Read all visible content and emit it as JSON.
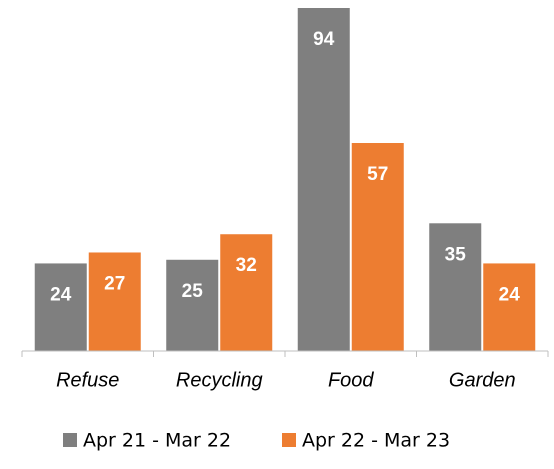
{
  "chart_data": {
    "type": "bar",
    "categories": [
      "Refuse",
      "Recycling",
      "Food",
      "Garden"
    ],
    "series": [
      {
        "name": "Apr 21 - Mar 22",
        "color": "#7f7f7f",
        "values": [
          24,
          25,
          94,
          35
        ]
      },
      {
        "name": "Apr 22 - Mar 23",
        "color": "#ed7d31",
        "values": [
          27,
          32,
          57,
          24
        ]
      }
    ],
    "ylim": [
      0,
      94
    ],
    "legend": "bottom",
    "data_labels": true
  }
}
